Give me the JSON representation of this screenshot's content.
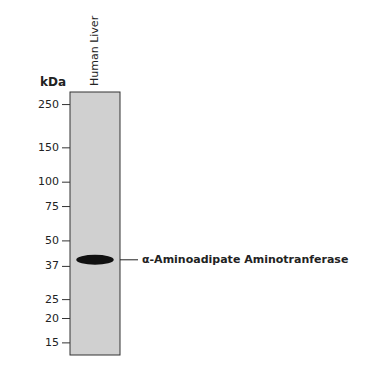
{
  "chart_data": {
    "type": "gel",
    "y_label": "kDa",
    "categories": [
      "Human Liver"
    ],
    "values": [
      40
    ],
    "color": "#111111",
    "annotations": [
      "α-Aminoadipate Aminotranferase"
    ],
    "log": "y",
    "ylim": [
      13,
      290
    ],
    "yticks": [
      250,
      150,
      100,
      75,
      50,
      37,
      25,
      20,
      15
    ],
    "grid": false
  }
}
